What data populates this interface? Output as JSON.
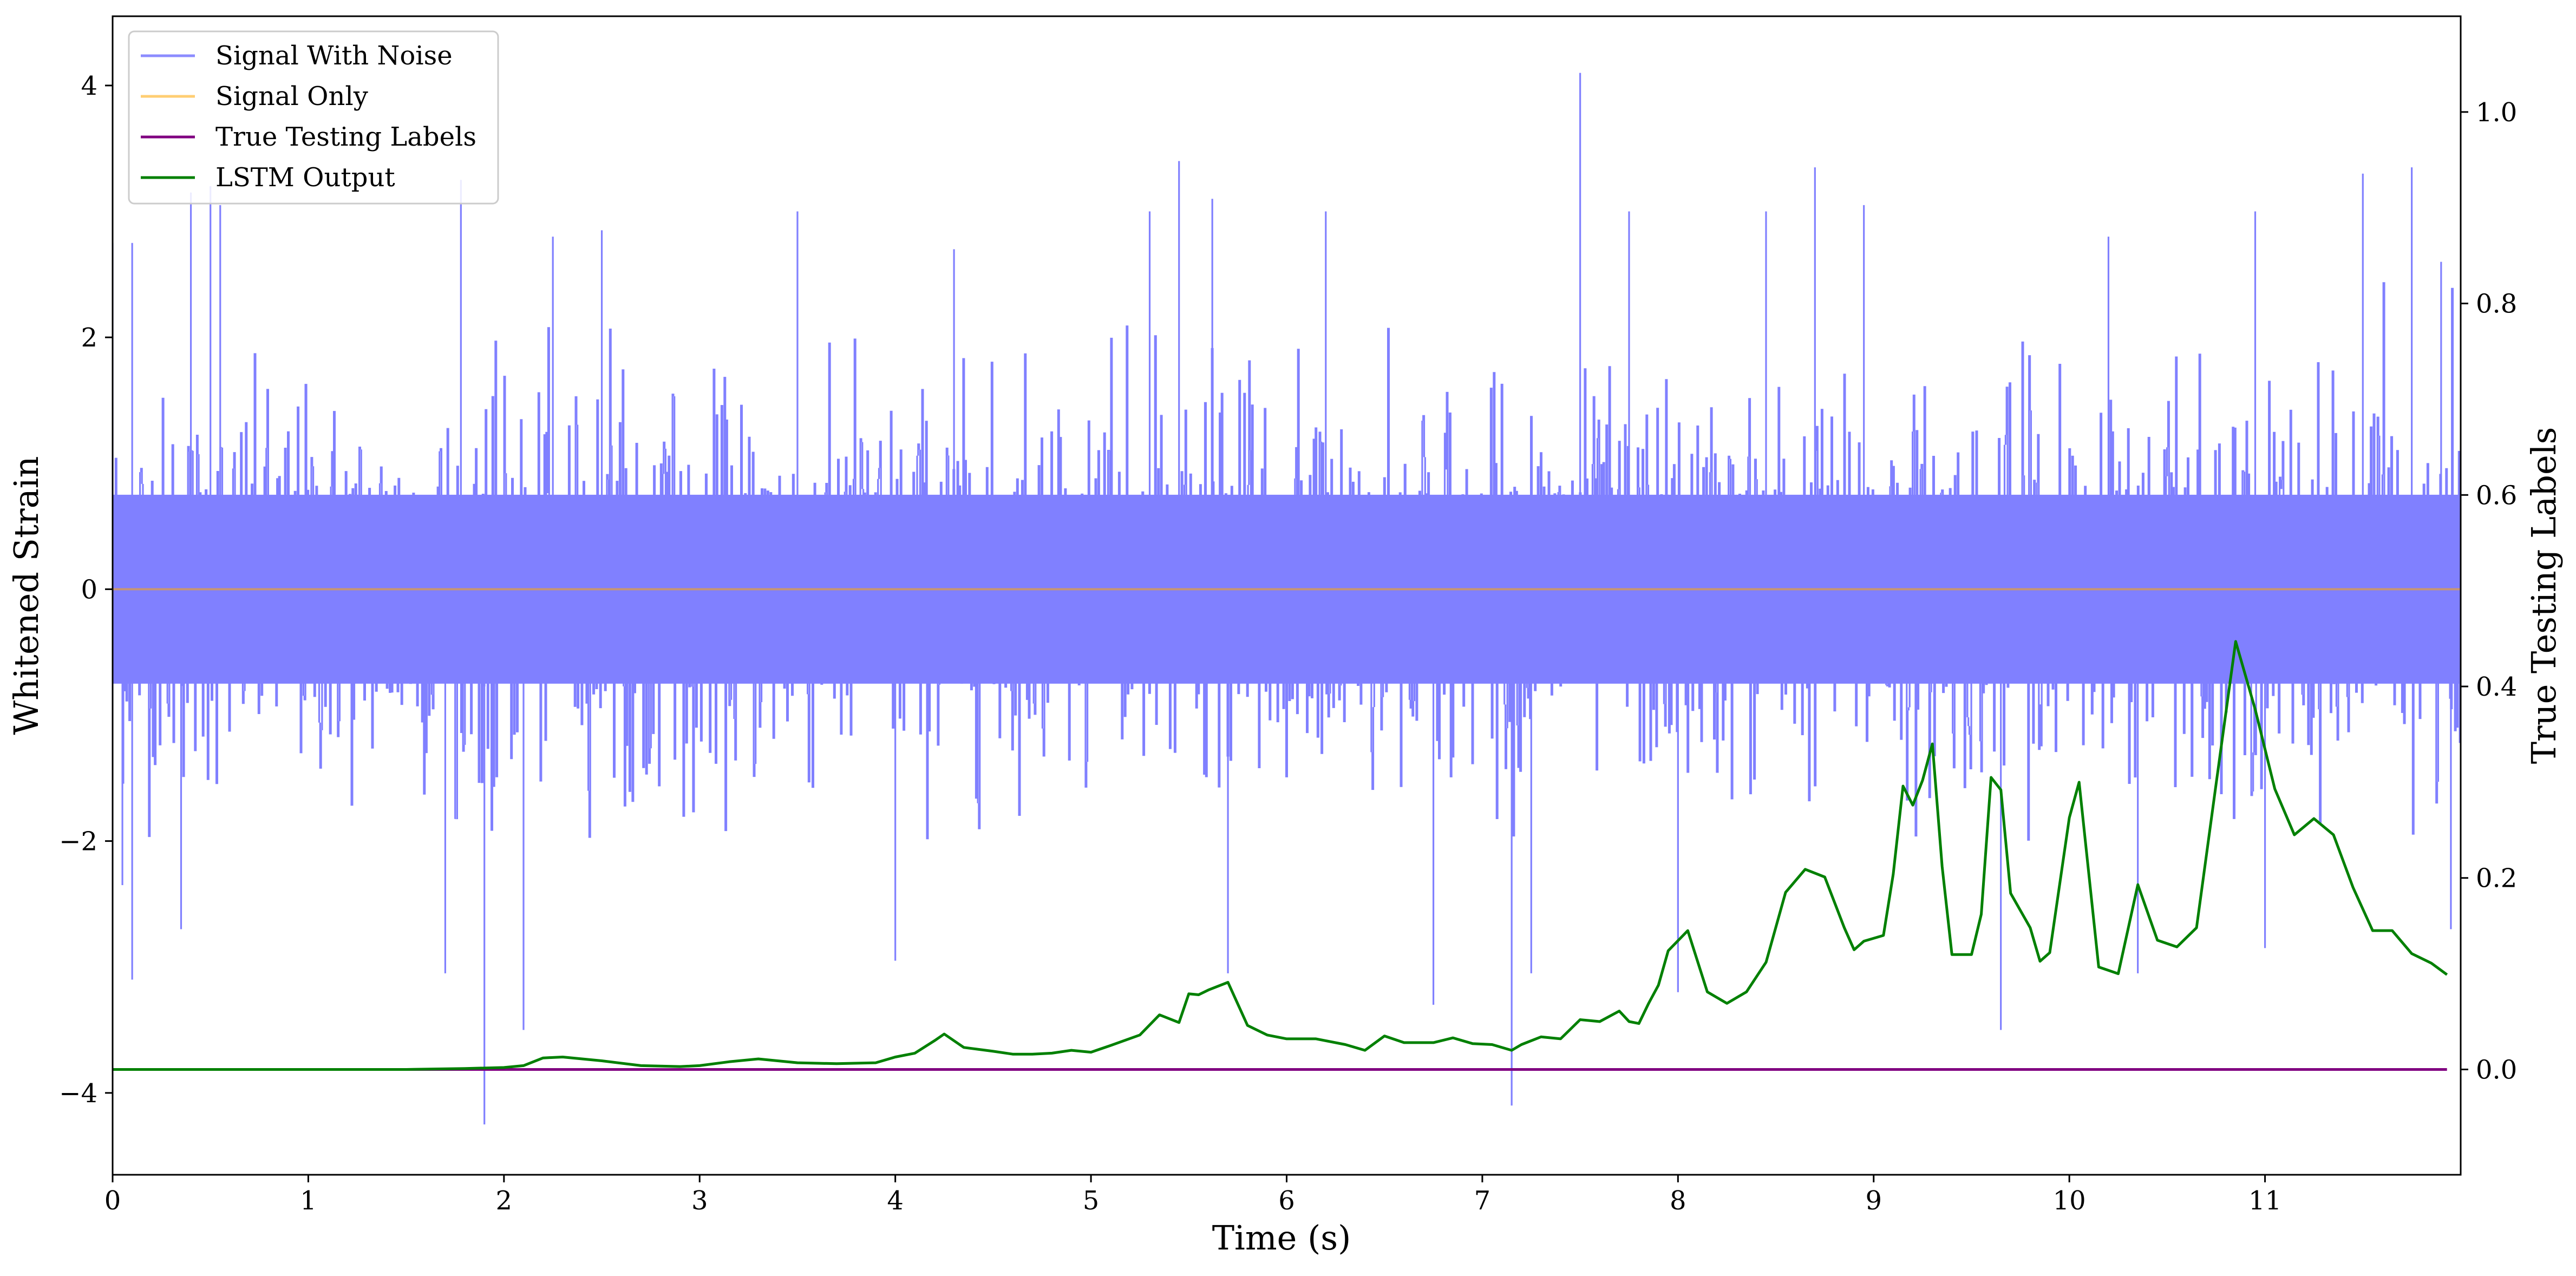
{
  "chart_data": {
    "type": "line",
    "xlabel": "Time (s)",
    "ylabel": "Whitened Strain",
    "y2label": "True Testing Labels",
    "xlim": [
      0,
      12.0
    ],
    "ylim": [
      -4.65,
      4.55
    ],
    "y2lim": [
      -0.11,
      1.1
    ],
    "x_ticks": [
      0,
      1,
      2,
      3,
      4,
      5,
      6,
      7,
      8,
      9,
      10,
      11
    ],
    "y_ticks": [
      -4,
      -2,
      0,
      2,
      4
    ],
    "y_tick_labels": [
      "−4",
      "−2",
      "0",
      "2",
      "4"
    ],
    "y2_ticks": [
      0.0,
      0.2,
      0.4,
      0.6,
      0.8,
      1.0
    ],
    "y2_tick_labels": [
      "0.0",
      "0.2",
      "0.4",
      "0.6",
      "0.8",
      "1.0"
    ],
    "grid": false,
    "legend_position": "top-left",
    "series": [
      {
        "name": "Signal With Noise",
        "axis": "left",
        "color": "#8080ff",
        "noise_sigma": 0.75,
        "envelope_x": [
          0,
          1,
          2,
          3,
          4,
          5,
          6,
          7,
          8,
          9,
          10,
          11,
          12
        ],
        "envelope_upper": [
          2.6,
          2.2,
          2.3,
          2.3,
          2.2,
          2.4,
          2.5,
          2.3,
          2.4,
          2.5,
          2.4,
          2.6,
          2.4
        ],
        "envelope_lower": [
          -2.0,
          -1.9,
          -2.0,
          -2.0,
          -2.0,
          -2.0,
          -2.0,
          -2.0,
          -2.0,
          -2.1,
          -2.0,
          -2.0,
          -2.0
        ],
        "peaks": [
          {
            "x": 0.0,
            "y": 2.75
          },
          {
            "x": 0.1,
            "y": 2.75
          },
          {
            "x": 0.4,
            "y": 3.15
          },
          {
            "x": 0.5,
            "y": 3.2
          },
          {
            "x": 0.55,
            "y": 3.05
          },
          {
            "x": 1.78,
            "y": 3.25
          },
          {
            "x": 2.25,
            "y": 2.8
          },
          {
            "x": 2.5,
            "y": 2.85
          },
          {
            "x": 3.5,
            "y": 3.0
          },
          {
            "x": 4.3,
            "y": 2.7
          },
          {
            "x": 5.3,
            "y": 3.0
          },
          {
            "x": 5.45,
            "y": 3.4
          },
          {
            "x": 5.62,
            "y": 3.1
          },
          {
            "x": 6.2,
            "y": 3.0
          },
          {
            "x": 7.5,
            "y": 4.1
          },
          {
            "x": 7.75,
            "y": 3.0
          },
          {
            "x": 8.45,
            "y": 3.0
          },
          {
            "x": 8.7,
            "y": 3.35
          },
          {
            "x": 8.95,
            "y": 3.05
          },
          {
            "x": 10.2,
            "y": 2.8
          },
          {
            "x": 10.95,
            "y": 3.0
          },
          {
            "x": 11.5,
            "y": 3.3
          },
          {
            "x": 11.75,
            "y": 3.35
          },
          {
            "x": 11.9,
            "y": 2.6
          },
          {
            "x": 0.05,
            "y": -2.35
          },
          {
            "x": 0.1,
            "y": -3.1
          },
          {
            "x": 0.35,
            "y": -2.7
          },
          {
            "x": 1.9,
            "y": -4.25
          },
          {
            "x": 2.1,
            "y": -3.5
          },
          {
            "x": 1.7,
            "y": -3.05
          },
          {
            "x": 4.0,
            "y": -2.95
          },
          {
            "x": 5.7,
            "y": -3.05
          },
          {
            "x": 6.75,
            "y": -3.3
          },
          {
            "x": 7.15,
            "y": -4.1
          },
          {
            "x": 7.25,
            "y": -3.05
          },
          {
            "x": 8.0,
            "y": -3.2
          },
          {
            "x": 9.65,
            "y": -3.5
          },
          {
            "x": 10.35,
            "y": -3.05
          },
          {
            "x": 11.0,
            "y": -2.85
          },
          {
            "x": 11.95,
            "y": -2.7
          }
        ]
      },
      {
        "name": "Signal Only",
        "axis": "left",
        "color": "#ffa500",
        "x": [
          0,
          12
        ],
        "y": [
          0,
          0
        ]
      },
      {
        "name": "True Testing Labels",
        "axis": "right",
        "color": "#800080",
        "x": [
          0,
          11.93
        ],
        "y": [
          0,
          0
        ]
      },
      {
        "name": "LSTM Output",
        "axis": "right",
        "color": "#008000",
        "x": [
          0,
          0.5,
          1,
          1.5,
          1.8,
          2.0,
          2.1,
          2.2,
          2.3,
          2.5,
          2.7,
          2.9,
          3.0,
          3.15,
          3.3,
          3.5,
          3.7,
          3.9,
          4.0,
          4.1,
          4.2,
          4.25,
          4.35,
          4.5,
          4.6,
          4.7,
          4.8,
          4.9,
          5.0,
          5.1,
          5.25,
          5.35,
          5.45,
          5.5,
          5.55,
          5.6,
          5.7,
          5.8,
          5.9,
          6.0,
          6.15,
          6.3,
          6.4,
          6.5,
          6.6,
          6.75,
          6.85,
          6.95,
          7.05,
          7.15,
          7.2,
          7.3,
          7.4,
          7.5,
          7.6,
          7.7,
          7.75,
          7.8,
          7.85,
          7.9,
          7.95,
          8.05,
          8.15,
          8.25,
          8.35,
          8.45,
          8.55,
          8.65,
          8.75,
          8.85,
          8.9,
          8.95,
          9.05,
          9.1,
          9.15,
          9.2,
          9.25,
          9.3,
          9.35,
          9.4,
          9.5,
          9.55,
          9.6,
          9.65,
          9.7,
          9.8,
          9.85,
          9.9,
          10.0,
          10.05,
          10.15,
          10.25,
          10.35,
          10.45,
          10.55,
          10.65,
          10.75,
          10.85,
          10.95,
          11.05,
          11.15,
          11.25,
          11.35,
          11.45,
          11.55,
          11.65,
          11.75,
          11.85,
          11.93
        ],
        "y": [
          0.0,
          0.0,
          0.0,
          0.0,
          0.001,
          0.002,
          0.004,
          0.012,
          0.013,
          0.009,
          0.004,
          0.003,
          0.004,
          0.008,
          0.011,
          0.007,
          0.006,
          0.007,
          0.013,
          0.017,
          0.03,
          0.037,
          0.023,
          0.019,
          0.016,
          0.016,
          0.017,
          0.02,
          0.018,
          0.025,
          0.036,
          0.057,
          0.049,
          0.079,
          0.078,
          0.083,
          0.091,
          0.046,
          0.036,
          0.032,
          0.032,
          0.026,
          0.02,
          0.035,
          0.028,
          0.028,
          0.033,
          0.027,
          0.026,
          0.02,
          0.026,
          0.034,
          0.032,
          0.052,
          0.05,
          0.061,
          0.05,
          0.048,
          0.069,
          0.088,
          0.124,
          0.145,
          0.081,
          0.069,
          0.081,
          0.112,
          0.185,
          0.209,
          0.201,
          0.148,
          0.125,
          0.134,
          0.14,
          0.204,
          0.296,
          0.276,
          0.302,
          0.34,
          0.212,
          0.12,
          0.12,
          0.162,
          0.305,
          0.292,
          0.184,
          0.148,
          0.113,
          0.122,
          0.263,
          0.3,
          0.107,
          0.1,
          0.193,
          0.135,
          0.128,
          0.148,
          0.298,
          0.447,
          0.376,
          0.293,
          0.245,
          0.262,
          0.245,
          0.19,
          0.145,
          0.145,
          0.121,
          0.111,
          0.099
        ]
      }
    ]
  }
}
